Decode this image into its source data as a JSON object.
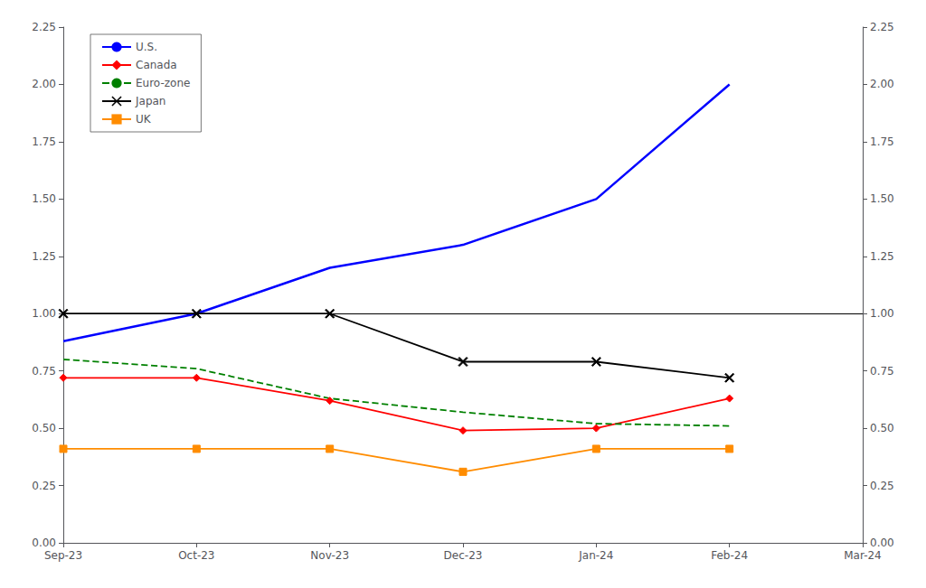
{
  "chart_data": {
    "type": "line",
    "categories": [
      "Sep-23",
      "Oct-23",
      "Nov-23",
      "Dec-23",
      "Jan-24",
      "Feb-24",
      "Mar-24"
    ],
    "series": [
      {
        "name": "U.S.",
        "color": "#0000ff",
        "line_style": "solid",
        "marker": "none",
        "values": [
          0.88,
          1.0,
          1.2,
          1.3,
          1.5,
          2.0,
          null
        ]
      },
      {
        "name": "Canada",
        "color": "#ff0000",
        "line_style": "solid",
        "marker": "diamond",
        "values": [
          0.72,
          0.72,
          0.62,
          0.49,
          0.5,
          0.63,
          null
        ]
      },
      {
        "name": "Euro-zone",
        "color": "#008000",
        "line_style": "dashed",
        "marker": "none",
        "values": [
          0.8,
          0.76,
          0.63,
          0.57,
          0.52,
          0.51,
          null
        ]
      },
      {
        "name": "Japan",
        "color": "#000000",
        "line_style": "solid",
        "marker": "x",
        "values": [
          1.0,
          1.0,
          1.0,
          0.79,
          0.79,
          0.72,
          null
        ]
      },
      {
        "name": "UK",
        "color": "#ff8c00",
        "line_style": "solid",
        "marker": "square",
        "values": [
          0.41,
          0.41,
          0.41,
          0.31,
          0.41,
          0.41,
          null
        ]
      }
    ],
    "hline": 1.0,
    "ylim": [
      0.0,
      2.25
    ],
    "yticks": [
      {
        "value": 0.0,
        "label": "0.00"
      },
      {
        "value": 0.25,
        "label": "0.25"
      },
      {
        "value": 0.5,
        "label": "0.50"
      },
      {
        "value": 0.75,
        "label": "0.75"
      },
      {
        "value": 1.0,
        "label": "1.00"
      },
      {
        "value": 1.25,
        "label": "1.25"
      },
      {
        "value": 1.5,
        "label": "1.50"
      },
      {
        "value": 1.75,
        "label": "1.75"
      },
      {
        "value": 2.0,
        "label": "2.00"
      },
      {
        "value": 2.25,
        "label": "2.25"
      }
    ],
    "y2lim": [
      0.0,
      2.25
    ],
    "y2ticks": [
      {
        "value": 0.0,
        "label": "0.00"
      },
      {
        "value": 0.25,
        "label": "0.25"
      },
      {
        "value": 0.5,
        "label": "0.50"
      },
      {
        "value": 0.75,
        "label": "0.75"
      },
      {
        "value": 1.0,
        "label": "1.00"
      },
      {
        "value": 1.25,
        "label": "1.25"
      },
      {
        "value": 1.5,
        "label": "1.50"
      },
      {
        "value": 1.75,
        "label": "1.75"
      },
      {
        "value": 2.0,
        "label": "2.00"
      },
      {
        "value": 2.25,
        "label": "2.25"
      }
    ],
    "grid": false,
    "legend": "upper left"
  }
}
